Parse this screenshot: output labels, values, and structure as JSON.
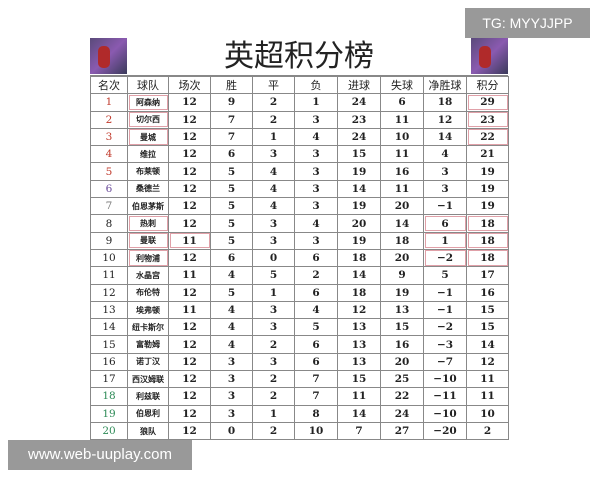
{
  "title": "英超积分榜",
  "watermark_top": "TG: MYYJJPP",
  "watermark_bottom": "www.web-uuplay.com",
  "headers": [
    "名次",
    "球队",
    "场次",
    "胜",
    "平",
    "负",
    "进球",
    "失球",
    "净胜球",
    "积分"
  ],
  "rank_colors": {
    "top": "#c0392b",
    "sixth": "#6a4a9a",
    "seventh": "#777777",
    "normal": "#222222",
    "relegation": "#2e8b57"
  },
  "rows": [
    [
      "1",
      "阿森纳",
      "12",
      "9",
      "2",
      "1",
      "24",
      "6",
      "18",
      "29"
    ],
    [
      "2",
      "切尔西",
      "12",
      "7",
      "2",
      "3",
      "23",
      "11",
      "12",
      "23"
    ],
    [
      "3",
      "曼城",
      "12",
      "7",
      "1",
      "4",
      "24",
      "10",
      "14",
      "22"
    ],
    [
      "4",
      "维拉",
      "12",
      "6",
      "3",
      "3",
      "15",
      "11",
      "4",
      "21"
    ],
    [
      "5",
      "布莱顿",
      "12",
      "5",
      "4",
      "3",
      "19",
      "16",
      "3",
      "19"
    ],
    [
      "6",
      "桑德兰",
      "12",
      "5",
      "4",
      "3",
      "14",
      "11",
      "3",
      "19"
    ],
    [
      "7",
      "伯恩茅斯",
      "12",
      "5",
      "4",
      "3",
      "19",
      "20",
      "−1",
      "19"
    ],
    [
      "8",
      "热刺",
      "12",
      "5",
      "3",
      "4",
      "20",
      "14",
      "6",
      "18"
    ],
    [
      "9",
      "曼联",
      "11",
      "5",
      "3",
      "3",
      "19",
      "18",
      "1",
      "18"
    ],
    [
      "10",
      "利物浦",
      "12",
      "6",
      "0",
      "6",
      "18",
      "20",
      "−2",
      "18"
    ],
    [
      "11",
      "水晶宫",
      "11",
      "4",
      "5",
      "2",
      "14",
      "9",
      "5",
      "17"
    ],
    [
      "12",
      "布伦特",
      "12",
      "5",
      "1",
      "6",
      "18",
      "19",
      "−1",
      "16"
    ],
    [
      "13",
      "埃弗顿",
      "11",
      "4",
      "3",
      "4",
      "12",
      "13",
      "−1",
      "15"
    ],
    [
      "14",
      "纽卡斯尔",
      "12",
      "4",
      "3",
      "5",
      "13",
      "15",
      "−2",
      "15"
    ],
    [
      "15",
      "富勒姆",
      "12",
      "4",
      "2",
      "6",
      "13",
      "16",
      "−3",
      "14"
    ],
    [
      "16",
      "诺丁汉",
      "12",
      "3",
      "3",
      "6",
      "13",
      "20",
      "−7",
      "12"
    ],
    [
      "17",
      "西汉姆联",
      "12",
      "3",
      "2",
      "7",
      "15",
      "25",
      "−10",
      "11"
    ],
    [
      "18",
      "利兹联",
      "12",
      "3",
      "2",
      "7",
      "11",
      "22",
      "−11",
      "11"
    ],
    [
      "19",
      "伯恩利",
      "12",
      "3",
      "1",
      "8",
      "14",
      "24",
      "−10",
      "10"
    ],
    [
      "20",
      "狼队",
      "12",
      "0",
      "2",
      "10",
      "7",
      "27",
      "−20",
      "2"
    ]
  ]
}
